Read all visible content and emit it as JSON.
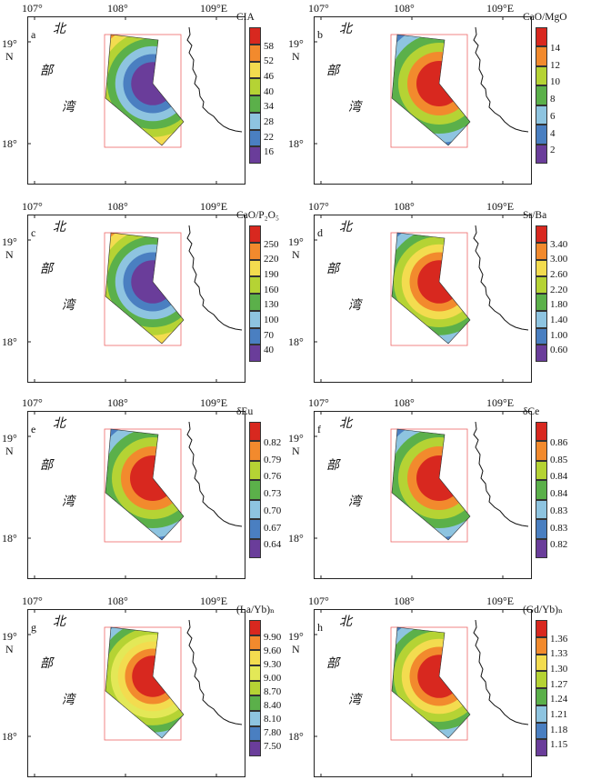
{
  "axis": {
    "top_lon": [
      "107°",
      "108°",
      "109°E"
    ],
    "lat": [
      "19°",
      "N",
      "18°"
    ]
  },
  "map_text": {
    "bei": "北",
    "bu": "部",
    "wan": "湾"
  },
  "colors": [
    "#6a3d9a",
    "#4575b4",
    "#74add1",
    "#abd9e9",
    "#a6d96a",
    "#66bd63",
    "#1a9850",
    "#fee08b",
    "#fdae61",
    "#f46d43",
    "#d73027"
  ],
  "panels": [
    {
      "letter": "a",
      "title": "CIA",
      "ticks": [
        "58",
        "52",
        "46",
        "40",
        "34",
        "28",
        "22",
        "16"
      ],
      "palette": [
        "#6a3d9a",
        "#4a7fc1",
        "#8ec4e0",
        "#5bb04a",
        "#b5d334",
        "#f3dc4f",
        "#f28a2d",
        "#d8281f"
      ]
    },
    {
      "letter": "b",
      "title": "CaO/MgO",
      "ticks": [
        "14",
        "12",
        "10",
        "8",
        "6",
        "4",
        "2"
      ],
      "palette": [
        "#6a3d9a",
        "#4a7fc1",
        "#8ec4e0",
        "#5bb04a",
        "#b5d334",
        "#f28a2d",
        "#d8281f"
      ]
    },
    {
      "letter": "c",
      "title": "CaO/P₂O₅",
      "ticks": [
        "250",
        "220",
        "190",
        "160",
        "130",
        "100",
        "70",
        "40"
      ],
      "palette": [
        "#6a3d9a",
        "#4a7fc1",
        "#8ec4e0",
        "#5bb04a",
        "#b5d334",
        "#f3dc4f",
        "#f28a2d",
        "#d8281f"
      ]
    },
    {
      "letter": "d",
      "title": "Sr/Ba",
      "ticks": [
        "3.40",
        "3.00",
        "2.60",
        "2.20",
        "1.80",
        "1.40",
        "1.00",
        "0.60"
      ],
      "palette": [
        "#6a3d9a",
        "#4a7fc1",
        "#8ec4e0",
        "#5bb04a",
        "#b5d334",
        "#f3dc4f",
        "#f28a2d",
        "#d8281f"
      ]
    },
    {
      "letter": "e",
      "title": "δEu",
      "ticks": [
        "0.82",
        "0.79",
        "0.76",
        "0.73",
        "0.70",
        "0.67",
        "0.64"
      ],
      "palette": [
        "#6a3d9a",
        "#4a7fc1",
        "#8ec4e0",
        "#5bb04a",
        "#b5d334",
        "#f28a2d",
        "#d8281f"
      ]
    },
    {
      "letter": "f",
      "title": "δCe",
      "ticks": [
        "0.86",
        "0.85",
        "0.84",
        "0.84",
        "0.83",
        "0.83",
        "0.82"
      ],
      "palette": [
        "#6a3d9a",
        "#4a7fc1",
        "#8ec4e0",
        "#5bb04a",
        "#b5d334",
        "#f28a2d",
        "#d8281f"
      ]
    },
    {
      "letter": "g",
      "title": "(La/Yb)ₙ",
      "ticks": [
        "9.90",
        "9.60",
        "9.30",
        "9.00",
        "8.70",
        "8.40",
        "8.10",
        "7.80",
        "7.50"
      ],
      "palette": [
        "#6a3d9a",
        "#4a7fc1",
        "#8ec4e0",
        "#5bb04a",
        "#b5d334",
        "#e3e857",
        "#f3dc4f",
        "#f28a2d",
        "#d8281f"
      ]
    },
    {
      "letter": "h",
      "title": "(Gd/Yb)ₙ",
      "ticks": [
        "1.36",
        "1.33",
        "1.30",
        "1.27",
        "1.24",
        "1.21",
        "1.18",
        "1.15"
      ],
      "palette": [
        "#6a3d9a",
        "#4a7fc1",
        "#8ec4e0",
        "#5bb04a",
        "#b5d334",
        "#f3dc4f",
        "#f28a2d",
        "#d8281f"
      ]
    }
  ]
}
